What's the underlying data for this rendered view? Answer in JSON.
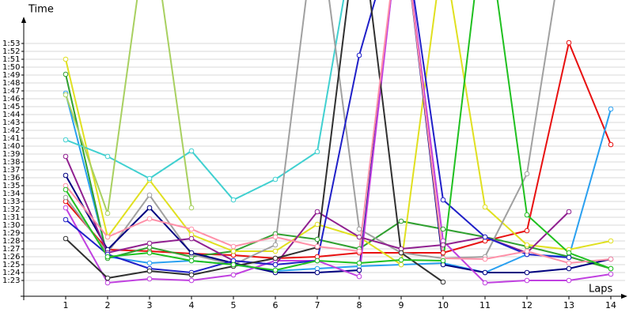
{
  "chart_data": {
    "type": "line",
    "y_label": "Time",
    "x_label": "Laps",
    "x": [
      1,
      2,
      3,
      4,
      5,
      6,
      7,
      8,
      9,
      10,
      11,
      12,
      13,
      14
    ],
    "xlim": [
      0,
      14.34
    ],
    "xticks": [
      1,
      2,
      3,
      4,
      5,
      6,
      7,
      8,
      9,
      10,
      11,
      12,
      13,
      14
    ],
    "ylim": [
      81,
      118.5
    ],
    "yticks": [
      {
        "value": 83,
        "label": "1:23"
      },
      {
        "value": 84,
        "label": "1:24"
      },
      {
        "value": 85,
        "label": "1:25"
      },
      {
        "value": 86,
        "label": "1:26"
      },
      {
        "value": 87,
        "label": "1:27"
      },
      {
        "value": 88,
        "label": "1:28"
      },
      {
        "value": 89,
        "label": "1:29"
      },
      {
        "value": 90,
        "label": "1:30"
      },
      {
        "value": 91,
        "label": "1:31"
      },
      {
        "value": 92,
        "label": "1:32"
      },
      {
        "value": 93,
        "label": "1:33"
      },
      {
        "value": 94,
        "label": "1:34"
      },
      {
        "value": 95,
        "label": "1:35"
      },
      {
        "value": 96,
        "label": "1:36"
      },
      {
        "value": 97,
        "label": "1:37"
      },
      {
        "value": 98,
        "label": "1:38"
      },
      {
        "value": 99,
        "label": "1:39"
      },
      {
        "value": 100,
        "label": "1:40"
      },
      {
        "value": 101,
        "label": "1:41"
      },
      {
        "value": 102,
        "label": "1:42"
      },
      {
        "value": 103,
        "label": "1:43"
      },
      {
        "value": 104,
        "label": "1:44"
      },
      {
        "value": 105,
        "label": "1:45"
      },
      {
        "value": 106,
        "label": "1:46"
      },
      {
        "value": 107,
        "label": "1:47"
      },
      {
        "value": 108,
        "label": "1:48"
      },
      {
        "value": 109,
        "label": "1:49"
      },
      {
        "value": 110,
        "label": "1:50"
      },
      {
        "value": 111,
        "label": "1:51"
      },
      {
        "value": 112,
        "label": "1:52"
      },
      {
        "value": 113,
        "label": "1:53"
      }
    ],
    "grid": true,
    "series": [
      {
        "color": "#e81010",
        "values": [
          93.0,
          86.9,
          86.7,
          86.4,
          86.2,
          85.8,
          86.0,
          86.5,
          86.5,
          86.5,
          88.0,
          89.3,
          113.1,
          100.2
        ]
      },
      {
        "color": "#2aa0f0",
        "values": [
          106.7,
          86.0,
          85.2,
          85.5,
          85.0,
          84.2,
          84.5,
          84.8,
          85.0,
          85.2,
          84.0,
          86.3,
          86.0,
          104.7
        ]
      },
      {
        "color": "#30a030",
        "values": [
          109.1,
          85.8,
          87.2,
          86.0,
          86.7,
          88.9,
          88.2,
          87.0,
          90.5,
          89.5,
          88.5,
          87.3,
          86.0,
          84.5
        ]
      },
      {
        "color": "#e0e020",
        "values": [
          111.0,
          88.5,
          95.7,
          88.8,
          86.7,
          86.7,
          90.1,
          88.5,
          85.0,
          125.0,
          92.3,
          87.5,
          86.9,
          88.0
        ]
      },
      {
        "color": "#40d0d0",
        "values": [
          100.8,
          98.7,
          95.9,
          99.4,
          93.2,
          95.8,
          99.3,
          130.0,
          null,
          null,
          null,
          null,
          null,
          null
        ]
      },
      {
        "color": "#a8d060",
        "values": [
          106.5,
          91.5,
          130.0,
          92.2,
          null,
          null,
          null,
          null,
          null,
          null,
          null,
          null,
          null,
          null
        ]
      },
      {
        "color": "#a0a0a0",
        "values": [
          93.5,
          86.5,
          93.8,
          86.3,
          85.0,
          87.5,
          130.0,
          89.5,
          86.5,
          85.8,
          86.0,
          96.5,
          130.0,
          null
        ]
      },
      {
        "color": "#000080",
        "values": [
          96.3,
          86.9,
          92.2,
          86.5,
          85.2,
          84.0,
          84.0,
          84.3,
          130.0,
          85.0,
          84.0,
          84.0,
          84.5,
          85.7
        ]
      },
      {
        "color": "#c040e0",
        "values": [
          92.2,
          82.7,
          83.2,
          83.0,
          83.7,
          85.5,
          85.5,
          83.5,
          130.0,
          88.0,
          82.7,
          83.0,
          83.0,
          83.8
        ]
      },
      {
        "color": "#902090",
        "values": [
          98.7,
          86.5,
          87.7,
          88.3,
          85.5,
          85.0,
          91.7,
          88.5,
          87.0,
          87.5,
          88.5,
          86.5,
          91.7,
          null
        ]
      },
      {
        "color": "#2020c8",
        "values": [
          90.7,
          86.3,
          84.5,
          84.0,
          85.5,
          85.0,
          85.5,
          111.5,
          130.0,
          93.2,
          88.5,
          86.3,
          85.9,
          null
        ]
      },
      {
        "color": "#303030",
        "values": [
          88.3,
          83.3,
          84.2,
          83.7,
          84.8,
          85.8,
          87.2,
          130.0,
          86.5,
          82.8,
          null,
          null,
          null,
          null
        ]
      },
      {
        "color": "#ff90a8",
        "values": [
          95.0,
          88.5,
          90.8,
          89.5,
          87.3,
          88.5,
          87.3,
          86.7,
          130.0,
          85.8,
          85.7,
          86.7,
          85.2,
          85.7
        ]
      },
      {
        "color": "#20c020",
        "values": [
          94.5,
          86.0,
          86.5,
          85.5,
          85.0,
          84.3,
          85.5,
          85.2,
          85.6,
          85.5,
          130.0,
          91.3,
          86.5,
          84.5
        ]
      }
    ]
  }
}
